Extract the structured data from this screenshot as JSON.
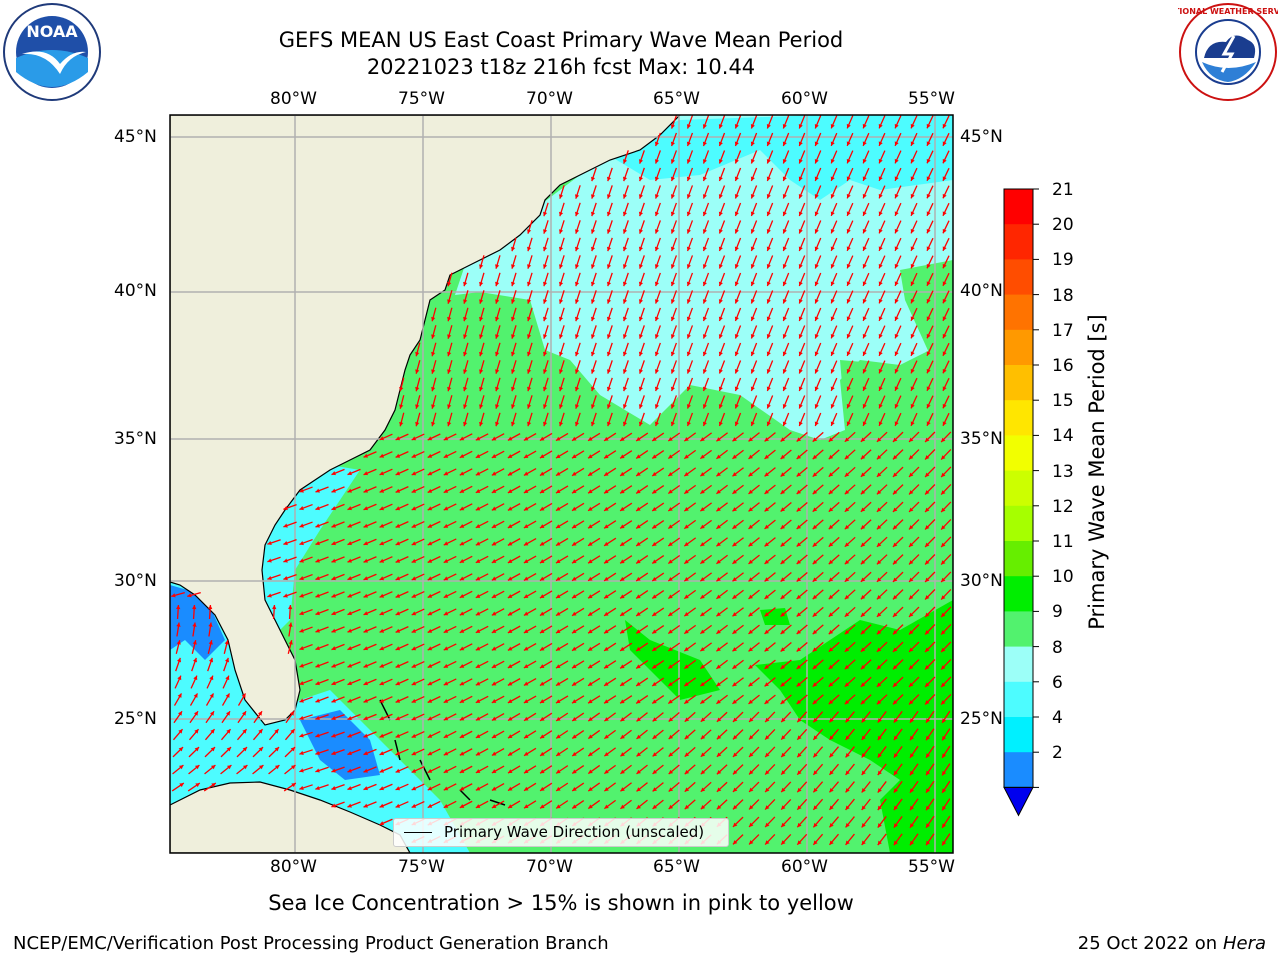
{
  "title_line1": "GEFS MEAN US East Coast Primary Wave Mean Period",
  "title_line2": "20221023 t18z 216h fcst   Max: 10.44",
  "lon_labels": [
    "80°W",
    "75°W",
    "70°W",
    "65°W",
    "60°W",
    "55°W"
  ],
  "lat_labels": [
    "45°N",
    "40°N",
    "35°N",
    "30°N",
    "25°N"
  ],
  "colorbar": {
    "title": "Primary Wave Mean Period [s]",
    "ticks": [
      "21",
      "20",
      "19",
      "18",
      "17",
      "16",
      "15",
      "14",
      "13",
      "12",
      "11",
      "10",
      "9",
      "8",
      "6",
      "4",
      "2"
    ],
    "colors": [
      "#ff0000",
      "#ff2600",
      "#ff4d00",
      "#ff7300",
      "#ff9900",
      "#ffbf00",
      "#ffe600",
      "#f2ff00",
      "#ccff00",
      "#a6ff00",
      "#66ee00",
      "#00ee00",
      "#52f26e",
      "#9cfff8",
      "#4dfcff",
      "#00f0ff",
      "#1a8cff",
      "#0000ee"
    ],
    "extend": "min"
  },
  "legend": "Primary Wave Direction (unscaled)",
  "ice_note": "Sea Ice Concentration > 15% is shown in pink to yellow",
  "footer_left": "NCEP/EMC/Verification Post Processing Product Generation Branch",
  "footer_right_date": "25 Oct 2022 on ",
  "footer_right_host": "Hera",
  "logo_left": "NOAA",
  "logo_right": "NATIONAL WEATHER SERVICE",
  "colors": {
    "land": "#efefdc",
    "ocean_green": "#52f26e",
    "ocean_lightcyan": "#9cfff8",
    "ocean_cyan": "#4dfcff",
    "ocean_blue": "#1a8cff",
    "bright_green": "#00ee00",
    "arrow": "#ff0000"
  }
}
